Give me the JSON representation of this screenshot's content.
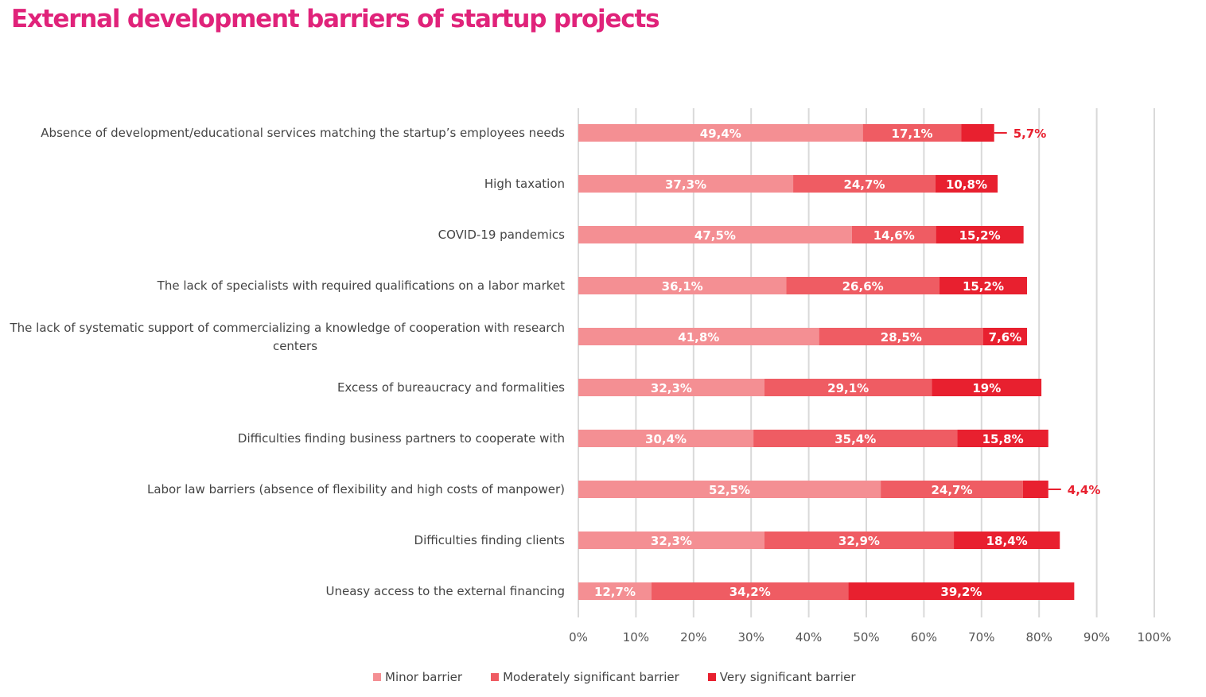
{
  "chart_data": {
    "type": "bar",
    "orientation": "horizontal",
    "stacked": true,
    "title": "External development  barriers of startup projects",
    "categories": [
      [
        "Absence of development/educational services matching the startup’s employees needs"
      ],
      [
        "High taxation"
      ],
      [
        "COVID-19 pandemics"
      ],
      [
        "The lack of specialists with required qualifications on a labor market"
      ],
      [
        "The lack of systematic support of commercializing a knowledge of cooperation with research",
        "centers"
      ],
      [
        "Excess of bureaucracy and formalities"
      ],
      [
        "Difficulties finding business partners to cooperate with"
      ],
      [
        "Labor law barriers (absence of flexibility and high costs of manpower)"
      ],
      [
        "Difficulties finding clients"
      ],
      [
        "Uneasy access to the external financing"
      ]
    ],
    "series": [
      {
        "name": "Minor barrier",
        "color": "#f48f93",
        "values": [
          49.4,
          37.3,
          47.5,
          36.1,
          41.8,
          32.3,
          30.4,
          52.5,
          32.3,
          12.7
        ],
        "labels": [
          "49,4%",
          "37,3%",
          "47,5%",
          "36,1%",
          "41,8%",
          "32,3%",
          "30,4%",
          "52,5%",
          "32,3%",
          "12,7%"
        ]
      },
      {
        "name": "Moderately significant barrier",
        "color": "#ef5c63",
        "values": [
          17.1,
          24.7,
          14.6,
          26.6,
          28.5,
          29.1,
          35.4,
          24.7,
          32.9,
          34.2
        ],
        "labels": [
          "17,1%",
          "24,7%",
          "14,6%",
          "26,6%",
          "28,5%",
          "29,1%",
          "35,4%",
          "24,7%",
          "32,9%",
          "34,2%"
        ]
      },
      {
        "name": "Very significant barrier",
        "color": "#e8202f",
        "values": [
          5.7,
          10.8,
          15.2,
          15.2,
          7.6,
          19,
          15.8,
          4.4,
          18.4,
          39.2
        ],
        "labels": [
          "5,7%",
          "10,8%",
          "15,2%",
          "15,2%",
          "7,6%",
          "19%",
          "15,8%",
          "4,4%",
          "18,4%",
          "39,2%"
        ]
      }
    ],
    "xlim": [
      0,
      100
    ],
    "xticks": [
      "0%",
      "10%",
      "20%",
      "30%",
      "40%",
      "50%",
      "60%",
      "70%",
      "80%",
      "90%",
      "100%"
    ],
    "grid": true,
    "legend_position": "bottom"
  }
}
